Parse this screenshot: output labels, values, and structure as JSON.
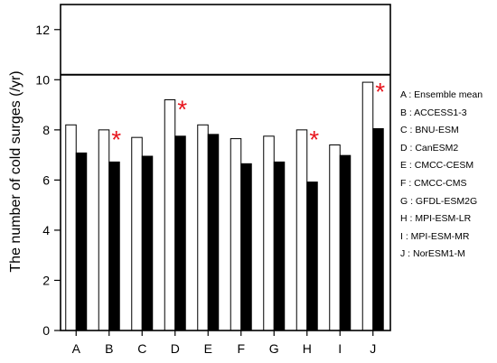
{
  "chart_data": {
    "type": "bar",
    "ylabel": "The number of cold surges (/yr)",
    "xlabel": "",
    "ylim": [
      0,
      13
    ],
    "yticks": [
      0,
      2,
      4,
      6,
      8,
      10,
      12
    ],
    "grid": false,
    "reference_line": 10.2,
    "categories": [
      "A",
      "B",
      "C",
      "D",
      "E",
      "F",
      "G",
      "H",
      "I",
      "J"
    ],
    "series": [
      {
        "fill": "#ffffff",
        "values": [
          8.2,
          8.0,
          7.7,
          9.2,
          8.2,
          7.65,
          7.75,
          8.0,
          7.4,
          9.9
        ]
      },
      {
        "fill": "#000000",
        "values": [
          7.08,
          6.72,
          6.95,
          7.75,
          7.82,
          6.65,
          6.72,
          5.92,
          6.98,
          8.05
        ]
      }
    ],
    "significant": [
      false,
      true,
      false,
      true,
      false,
      false,
      false,
      true,
      false,
      true
    ],
    "marker": {
      "symbol": "*",
      "color": "#e8171f"
    },
    "legend": {
      "position": "right",
      "entries": [
        "A : Ensemble mean",
        "B : ACCESS1-3",
        "C : BNU-ESM",
        "D : CanESM2",
        "E : CMCC-CESM",
        "F : CMCC-CMS",
        "G : GFDL-ESM2G",
        "H : MPI-ESM-LR",
        "I : MPI-ESM-MR",
        "J : NorESM1-M"
      ]
    }
  }
}
